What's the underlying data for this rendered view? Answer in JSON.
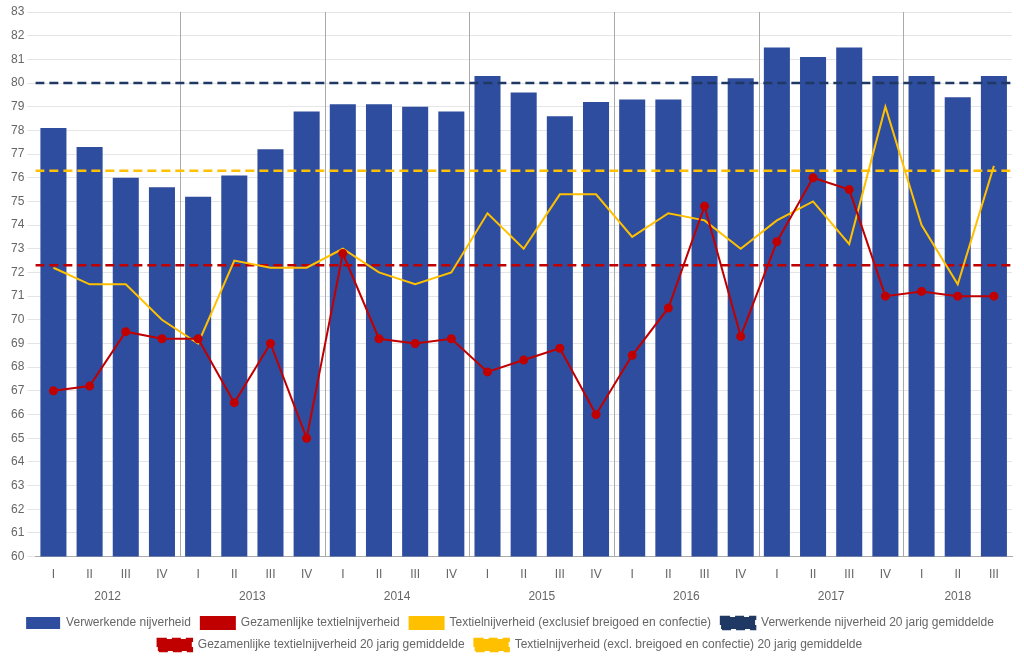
{
  "chart_data": {
    "type": "bar",
    "categories": [
      "I",
      "II",
      "III",
      "IV",
      "I",
      "II",
      "III",
      "IV",
      "I",
      "II",
      "III",
      "IV",
      "I",
      "II",
      "III",
      "IV",
      "I",
      "II",
      "III",
      "IV",
      "I",
      "II",
      "III",
      "IV",
      "I",
      "II",
      "III"
    ],
    "groups": [
      {
        "label": "2012",
        "size": 4
      },
      {
        "label": "2013",
        "size": 4
      },
      {
        "label": "2014",
        "size": 4
      },
      {
        "label": "2015",
        "size": 4
      },
      {
        "label": "2016",
        "size": 4
      },
      {
        "label": "2017",
        "size": 4
      },
      {
        "label": "2018",
        "size": 3
      }
    ],
    "series": [
      {
        "name": "Verwerkende nijverheid",
        "type": "bar",
        "color": "#2E4D9E",
        "values": [
          78.1,
          77.3,
          76.0,
          75.6,
          75.2,
          76.1,
          77.2,
          78.8,
          79.1,
          79.1,
          79.0,
          78.8,
          80.3,
          79.6,
          78.6,
          79.2,
          79.3,
          79.3,
          80.3,
          80.2,
          81.5,
          81.1,
          81.5,
          80.3,
          80.3,
          79.4,
          80.3
        ]
      },
      {
        "name": "Gezamenlijke textielnijverheid",
        "type": "line",
        "color": "#C00000",
        "marker": "circle",
        "values": [
          67.0,
          67.2,
          69.5,
          69.2,
          69.2,
          66.5,
          69.0,
          65.0,
          72.8,
          69.2,
          69.0,
          69.2,
          67.8,
          68.3,
          68.8,
          66.0,
          68.5,
          70.5,
          74.8,
          69.3,
          73.3,
          76.0,
          75.5,
          71.0,
          71.2,
          71.0,
          71.0
        ]
      },
      {
        "name": "Textielnijverheid (exclusief breigoed en confectie)",
        "type": "line",
        "color": "#FFC000",
        "marker": "none",
        "values": [
          72.2,
          71.5,
          71.5,
          70.0,
          69.0,
          72.5,
          72.2,
          72.2,
          73.0,
          72.0,
          71.5,
          72.0,
          74.5,
          73.0,
          75.3,
          75.3,
          73.5,
          74.5,
          74.2,
          73.0,
          74.2,
          75.0,
          73.2,
          79.0,
          74.0,
          71.5,
          76.5
        ]
      },
      {
        "name": "Verwerkende nijverheid 20 jarig gemiddelde",
        "type": "hline",
        "color": "#1F3864",
        "line_style": "dashed",
        "value": 80.0
      },
      {
        "name": "Gezamenlijke textielnijverheid 20 jarig gemiddelde",
        "type": "hline",
        "color": "#C00000",
        "line_style": "dashed",
        "value": 72.3
      },
      {
        "name": "Textielnijverheid (excl. breigoed en confectie) 20 jarig gemiddelde",
        "type": "hline",
        "color": "#FFC000",
        "line_style": "dashed",
        "value": 76.3
      }
    ],
    "ylim": [
      60,
      83
    ],
    "yticks": [
      60,
      61,
      62,
      63,
      64,
      65,
      66,
      67,
      68,
      69,
      70,
      71,
      72,
      73,
      74,
      75,
      76,
      77,
      78,
      79,
      80,
      81,
      82,
      83
    ],
    "grid": true,
    "legend": "bottom"
  }
}
